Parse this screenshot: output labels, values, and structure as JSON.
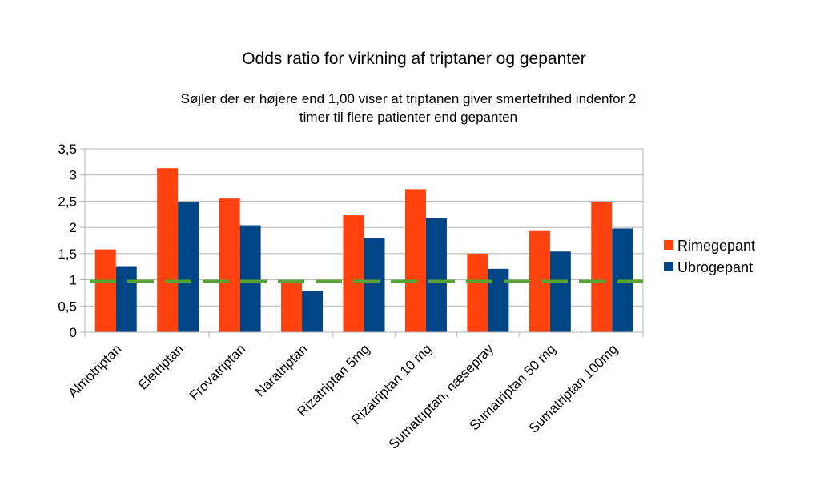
{
  "chart_data": {
    "type": "bar",
    "title": "Odds ratio for virkning af triptaner og gepanter",
    "subtitle_lines": [
      "Søjler der er højere end 1,00 viser at triptanen giver smertefrihed indenfor 2",
      "timer til flere patienter end gepanten"
    ],
    "categories": [
      "Almotriptan",
      "Eletriptan",
      "Frovatriptan",
      "Naratriptan",
      "Rizatriptan 5mg",
      "Rizatriptan 10 mg",
      "Sumatriptan, næsepray",
      "Sumatriptan 50 mg",
      "Sumatriptan 100mg"
    ],
    "series": [
      {
        "name": "Rimegepant",
        "color": "#ff420e",
        "values": [
          1.58,
          3.13,
          2.55,
          0.97,
          2.23,
          2.73,
          1.5,
          1.93,
          2.48
        ]
      },
      {
        "name": "Ubrogepant",
        "color": "#004586",
        "values": [
          1.26,
          2.49,
          2.04,
          0.79,
          1.79,
          2.17,
          1.21,
          1.54,
          1.98
        ]
      }
    ],
    "reference_line": {
      "value": 0.97,
      "color": "#58a333",
      "style": "dashed"
    },
    "ylim": [
      0,
      3.5
    ],
    "yticks": [
      "0",
      "0,5",
      "1",
      "1,5",
      "2",
      "2,5",
      "3",
      "3,5"
    ],
    "grid": true,
    "legend": "right"
  }
}
